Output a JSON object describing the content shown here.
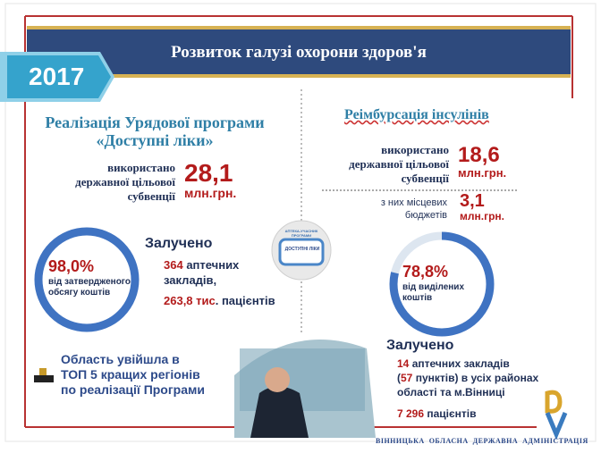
{
  "header": {
    "title": "Розвиток галузі охорони здоров'я",
    "year": "2017"
  },
  "left": {
    "title": [
      "Реалізація  Урядової програми",
      "«Доступні ліки»"
    ],
    "used": {
      "label": [
        "використано",
        "державної цільової",
        "субвенції"
      ],
      "amount": "28,1",
      "unit": "млн.грн."
    },
    "ring": {
      "percent": "98,0%",
      "caption": [
        "від затвердженого",
        "обсягу коштів"
      ]
    },
    "involved": {
      "title": "Залучено",
      "pharmacies": {
        "number": "364",
        "text": " аптечних",
        "text2": "закладів,"
      },
      "patients": {
        "number": "263,8 тис",
        "text": ". пацієнтів"
      }
    },
    "award": [
      "Область увійшла в",
      "ТОП 5 кращих регіонів",
      "по реалізації Програми"
    ]
  },
  "logo": {
    "top": "АПТЕКА-УЧАСНИК ПРОГРАМИ",
    "name": "ДОСТУПНІ ЛІКИ"
  },
  "right": {
    "title": "Реімбурсація інсулінів",
    "used": {
      "label": [
        "використано",
        "державної цільової",
        "субвенції"
      ],
      "amount": "18,6",
      "unit": "млн.грн."
    },
    "local": {
      "label": [
        "з них місцевих",
        "бюджетів"
      ],
      "amount": "3,1",
      "unit": "млн.грн."
    },
    "ring": {
      "percent": "78,8%",
      "caption": [
        "від виділених",
        "коштів"
      ]
    },
    "involved": {
      "title": "Залучено",
      "line1": {
        "number": "14",
        "text": " аптечних закладів"
      },
      "line2": {
        "open": "(",
        "number": "57",
        "text": " пунктів) в усіх районах"
      },
      "line3": "області та м.Вінниці",
      "patients": {
        "number": "7 296",
        "text": " пацієнтів"
      }
    }
  },
  "footer": "ВІННИЦЬКА  ОБЛАСНА  ДЕРЖАВНА  АДМІНІСТРАЦІЯ"
}
